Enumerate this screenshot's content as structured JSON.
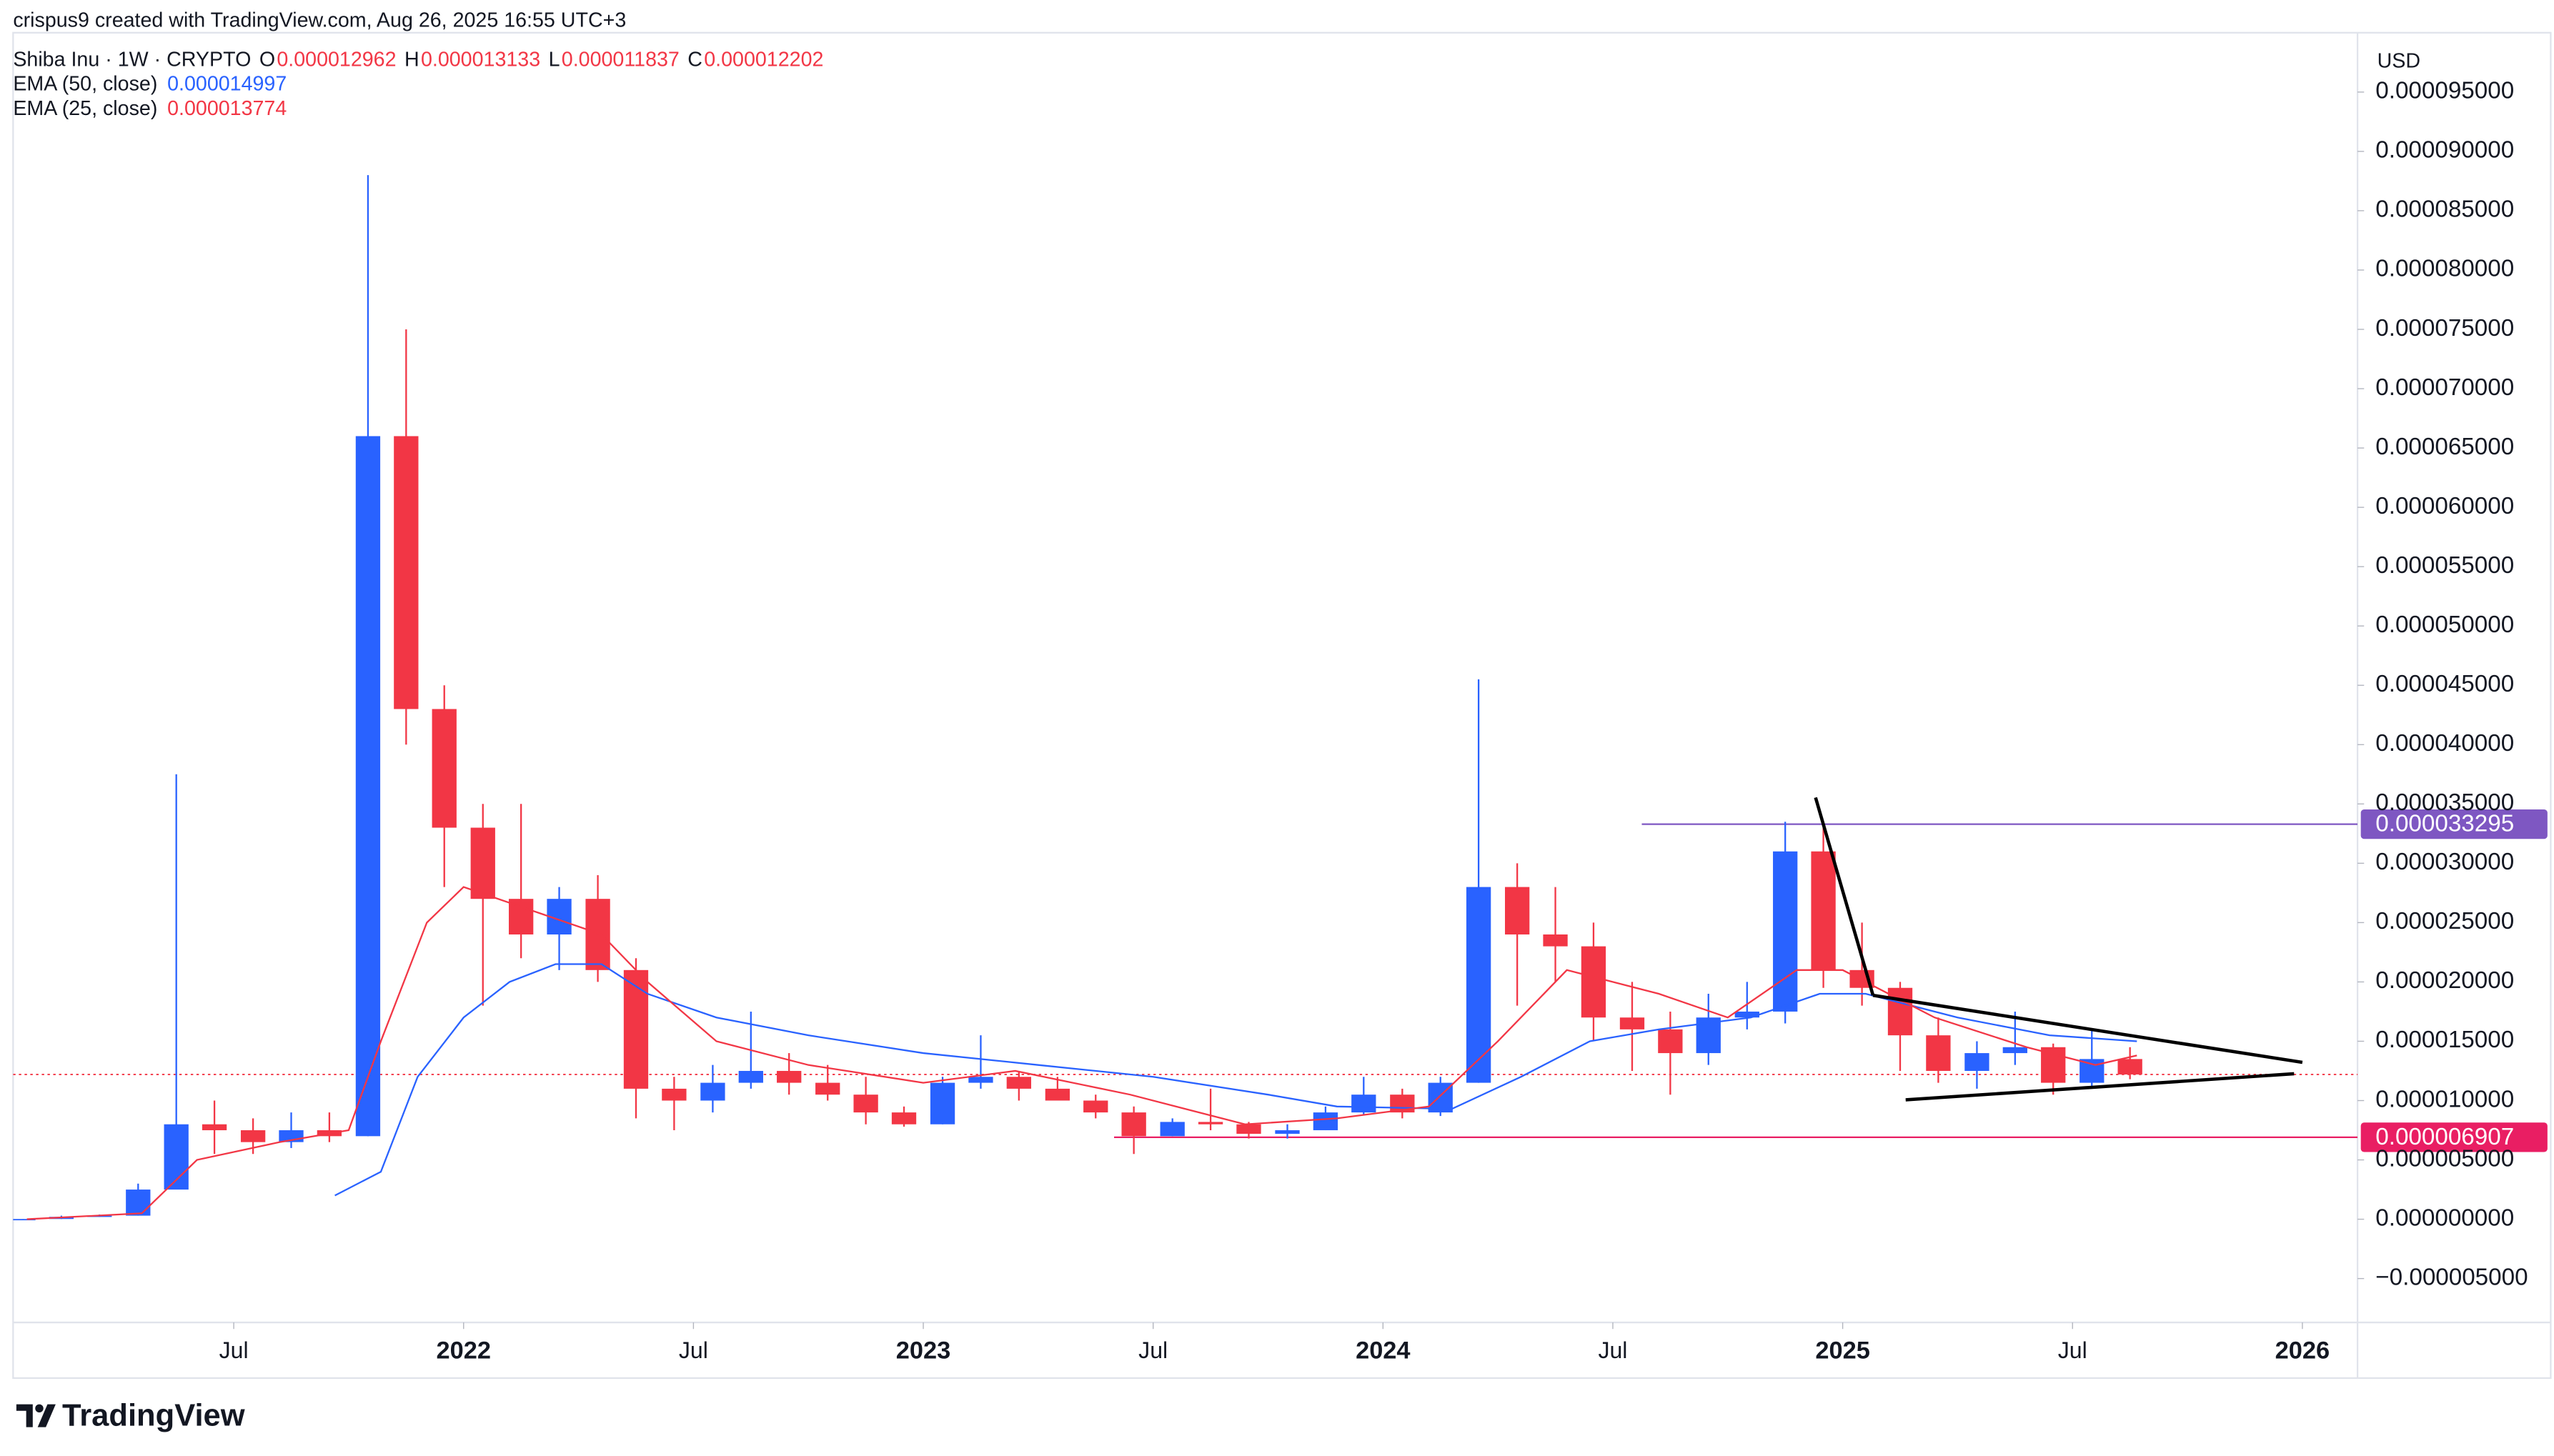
{
  "header": {
    "text": "crispus9 created with TradingView.com, Aug 26, 2025 16:55 UTC+3"
  },
  "brand": "TradingView",
  "chart_data": {
    "type": "candlestick",
    "legend": {
      "symbol": "Shiba Inu · 1W · CRYPTO",
      "ohlc": [
        {
          "label": "O",
          "value": 1.2962e-05
        },
        {
          "label": "H",
          "value": 1.3133e-05
        },
        {
          "label": "L",
          "value": 1.1837e-05
        },
        {
          "label": "C",
          "value": 1.2202e-05
        }
      ]
    },
    "currency": "USD",
    "up_color": "#2962ff",
    "down_color": "#f23645",
    "grid": false,
    "x": [
      2021.042,
      2021.125,
      2021.208,
      2021.292,
      2021.375,
      2021.458,
      2021.542,
      2021.625,
      2021.708,
      2021.792,
      2021.875,
      2021.958,
      2022.042,
      2022.125,
      2022.208,
      2022.292,
      2022.375,
      2022.458,
      2022.542,
      2022.625,
      2022.708,
      2022.792,
      2022.875,
      2022.958,
      2023.042,
      2023.125,
      2023.208,
      2023.292,
      2023.375,
      2023.458,
      2023.542,
      2023.625,
      2023.708,
      2023.792,
      2023.875,
      2023.958,
      2024.042,
      2024.125,
      2024.208,
      2024.292,
      2024.375,
      2024.458,
      2024.542,
      2024.625,
      2024.708,
      2024.792,
      2024.875,
      2024.958,
      2025.042,
      2025.125,
      2025.208,
      2025.292,
      2025.375,
      2025.458,
      2025.542,
      2025.625
    ],
    "open": [
      1e-08,
      2e-08,
      2e-07,
      3e-07,
      2.5e-06,
      8e-06,
      7.5e-06,
      6.5e-06,
      7.5e-06,
      7e-06,
      6.6e-05,
      4.3e-05,
      3.3e-05,
      2.7e-05,
      2.4e-05,
      2.7e-05,
      2.1e-05,
      1.1e-05,
      1e-05,
      1.15e-05,
      1.25e-05,
      1.15e-05,
      1.05e-05,
      9e-06,
      8e-06,
      1.15e-05,
      1.2e-05,
      1.1e-05,
      1e-05,
      9e-06,
      7e-06,
      8.2e-06,
      8e-06,
      7.2e-06,
      7.5e-06,
      9e-06,
      1.05e-05,
      9e-06,
      1.15e-05,
      2.8e-05,
      2.4e-05,
      2.3e-05,
      1.7e-05,
      1.6e-05,
      1.4e-05,
      1.7e-05,
      1.75e-05,
      3.1e-05,
      2.1e-05,
      1.95e-05,
      1.55e-05,
      1.25e-05,
      1.4e-05,
      1.45e-05,
      1.15e-05,
      1.35e-05
    ],
    "high": [
      2e-08,
      3e-07,
      4e-07,
      3e-06,
      3.75e-05,
      1e-05,
      8.5e-06,
      9e-06,
      9e-06,
      8.8e-05,
      7.5e-05,
      4.5e-05,
      3.5e-05,
      3.5e-05,
      2.8e-05,
      2.9e-05,
      2.2e-05,
      1.2e-05,
      1.3e-05,
      1.75e-05,
      1.4e-05,
      1.3e-05,
      1.2e-05,
      9.5e-06,
      1.2e-05,
      1.55e-05,
      1.25e-05,
      1.2e-05,
      1.05e-05,
      9.5e-06,
      8.5e-06,
      1.1e-05,
      8.2e-06,
      8e-06,
      9.5e-06,
      1.2e-05,
      1.1e-05,
      1.2e-05,
      4.55e-05,
      3e-05,
      2.8e-05,
      2.5e-05,
      2e-05,
      1.75e-05,
      1.9e-05,
      2e-05,
      3.35e-05,
      3.35e-05,
      2.5e-05,
      2e-05,
      1.7e-05,
      1.5e-05,
      1.75e-05,
      1.48e-05,
      1.6e-05,
      1.45e-05
    ],
    "low": [
      1e-08,
      2e-08,
      2e-07,
      3e-07,
      2.5e-06,
      5.5e-06,
      5.5e-06,
      6e-06,
      6.5e-06,
      7e-06,
      4e-05,
      2.8e-05,
      1.8e-05,
      2.2e-05,
      2.1e-05,
      2e-05,
      8.5e-06,
      7.5e-06,
      9e-06,
      1.1e-05,
      1.05e-05,
      1e-05,
      8e-06,
      7.8e-06,
      8e-06,
      1.1e-05,
      1e-05,
      1e-05,
      8.5e-06,
      5.5e-06,
      7e-06,
      7.5e-06,
      6.8e-06,
      6.8e-06,
      7.5e-06,
      8.8e-06,
      8.5e-06,
      8.7e-06,
      1.15e-05,
      1.8e-05,
      2e-05,
      1.5e-05,
      1.25e-05,
      1.05e-05,
      1.3e-05,
      1.6e-05,
      1.65e-05,
      1.95e-05,
      1.8e-05,
      1.25e-05,
      1.15e-05,
      1.1e-05,
      1.3e-05,
      1.05e-05,
      1.1e-05,
      1.18e-05
    ],
    "close": [
      2e-08,
      2e-07,
      3e-07,
      2.5e-06,
      8e-06,
      7.5e-06,
      6.5e-06,
      7.5e-06,
      7e-06,
      6.6e-05,
      4.3e-05,
      3.3e-05,
      2.7e-05,
      2.4e-05,
      2.7e-05,
      2.1e-05,
      1.1e-05,
      1e-05,
      1.15e-05,
      1.25e-05,
      1.15e-05,
      1.05e-05,
      9e-06,
      8e-06,
      1.15e-05,
      1.2e-05,
      1.1e-05,
      1e-05,
      9e-06,
      7e-06,
      8.2e-06,
      8e-06,
      7.2e-06,
      7.5e-06,
      9e-06,
      1.05e-05,
      9e-06,
      1.15e-05,
      2.8e-05,
      2.4e-05,
      2.3e-05,
      1.7e-05,
      1.6e-05,
      1.4e-05,
      1.7e-05,
      1.75e-05,
      3.1e-05,
      2.1e-05,
      1.95e-05,
      1.55e-05,
      1.25e-05,
      1.4e-05,
      1.45e-05,
      1.15e-05,
      1.35e-05,
      1.22e-05
    ],
    "indicators": [
      {
        "name": "EMA (50, close)",
        "color": "#2962ff",
        "value": 1.4997e-05,
        "x": [
          2021.72,
          2021.82,
          2021.9,
          2022.0,
          2022.1,
          2022.2,
          2022.3,
          2022.4,
          2022.55,
          2022.75,
          2023.0,
          2023.25,
          2023.5,
          2023.75,
          2023.9,
          2024.15,
          2024.3,
          2024.45,
          2024.6,
          2024.8,
          2024.95,
          2025.05,
          2025.25,
          2025.45,
          2025.64
        ],
        "values": [
          2e-06,
          4e-06,
          1.2e-05,
          1.7e-05,
          2e-05,
          2.15e-05,
          2.15e-05,
          1.9e-05,
          1.7e-05,
          1.55e-05,
          1.4e-05,
          1.3e-05,
          1.2e-05,
          1.05e-05,
          9.5e-06,
          9.3e-06,
          1.2e-05,
          1.5e-05,
          1.6e-05,
          1.7e-05,
          1.9e-05,
          1.9e-05,
          1.7e-05,
          1.55e-05,
          1.5e-05
        ]
      },
      {
        "name": "EMA (25, close)",
        "color": "#f23645",
        "value": 1.3774e-05,
        "x": [
          2021.05,
          2021.3,
          2021.42,
          2021.6,
          2021.75,
          2021.82,
          2021.92,
          2022.0,
          2022.15,
          2022.3,
          2022.4,
          2022.55,
          2022.75,
          2023.0,
          2023.2,
          2023.45,
          2023.7,
          2023.9,
          2024.1,
          2024.25,
          2024.4,
          2024.6,
          2024.75,
          2024.9,
          2025.0,
          2025.2,
          2025.4,
          2025.55,
          2025.64
        ],
        "values": [
          0,
          5e-07,
          5e-06,
          6.5e-06,
          7.5e-06,
          1.5e-05,
          2.5e-05,
          2.8e-05,
          2.6e-05,
          2.4e-05,
          2e-05,
          1.5e-05,
          1.3e-05,
          1.15e-05,
          1.25e-05,
          1.05e-05,
          8e-06,
          8.5e-06,
          9.5e-06,
          1.5e-05,
          2.1e-05,
          1.9e-05,
          1.7e-05,
          2.1e-05,
          2.1e-05,
          1.7e-05,
          1.45e-05,
          1.3e-05,
          1.38e-05
        ]
      }
    ],
    "levels": [
      {
        "value": 3.3295e-05,
        "color": "#7e57c2",
        "x_start": 2024.563
      },
      {
        "value": 6.907e-06,
        "color": "#e91e63",
        "x_start": 2023.415
      }
    ],
    "trendlines": [
      {
        "x": [
          2024.941,
          2025.066
        ],
        "values": [
          3.554e-05,
          1.887e-05
        ]
      },
      {
        "x": [
          2025.066,
          2026.0
        ],
        "values": [
          1.887e-05,
          1.322e-05
        ]
      },
      {
        "x": [
          2025.137,
          2025.982
        ],
        "values": [
          1.006e-05,
          1.226e-05
        ]
      }
    ],
    "xlim": [
      2021.02,
      2026.12
    ],
    "xticks": [
      {
        "value": 2021.5,
        "label": "Jul"
      },
      2022,
      {
        "value": 2022.5,
        "label": "Jul"
      },
      2023,
      {
        "value": 2023.5,
        "label": "Jul"
      },
      2024,
      {
        "value": 2024.5,
        "label": "Jul"
      },
      2025,
      {
        "value": 2025.5,
        "label": "Jul"
      },
      2026
    ],
    "ylim": [
      -8.7e-06,
      0.0001
    ],
    "yticks": [
      {
        "value": -5e-06,
        "label": "−0.000005000"
      },
      {
        "value": 0,
        "label": "0.000000000"
      },
      {
        "value": 5e-06,
        "label": "0.000005000"
      },
      {
        "value": 1e-05,
        "label": "0.000010000"
      },
      {
        "value": 1.5e-05,
        "label": "0.000015000"
      },
      {
        "value": 2e-05,
        "label": "0.000020000"
      },
      {
        "value": 2.5e-05,
        "label": "0.000025000"
      },
      {
        "value": 3e-05,
        "label": "0.000030000"
      },
      {
        "value": 3.5e-05,
        "label": "0.000035000"
      },
      {
        "value": 4e-05,
        "label": "0.000040000"
      },
      {
        "value": 4.5e-05,
        "label": "0.000045000"
      },
      {
        "value": 5e-05,
        "label": "0.000050000"
      },
      {
        "value": 5.5e-05,
        "label": "0.000055000"
      },
      {
        "value": 6e-05,
        "label": "0.000060000"
      },
      {
        "value": 6.5e-05,
        "label": "0.000065000"
      },
      {
        "value": 7e-05,
        "label": "0.000070000"
      },
      {
        "value": 7.5e-05,
        "label": "0.000075000"
      },
      {
        "value": 8e-05,
        "label": "0.000080000"
      },
      {
        "value": 8.5e-05,
        "label": "0.000085000"
      },
      {
        "value": 9e-05,
        "label": "0.000090000"
      },
      {
        "value": 9.5e-05,
        "label": "0.000095000"
      }
    ]
  }
}
